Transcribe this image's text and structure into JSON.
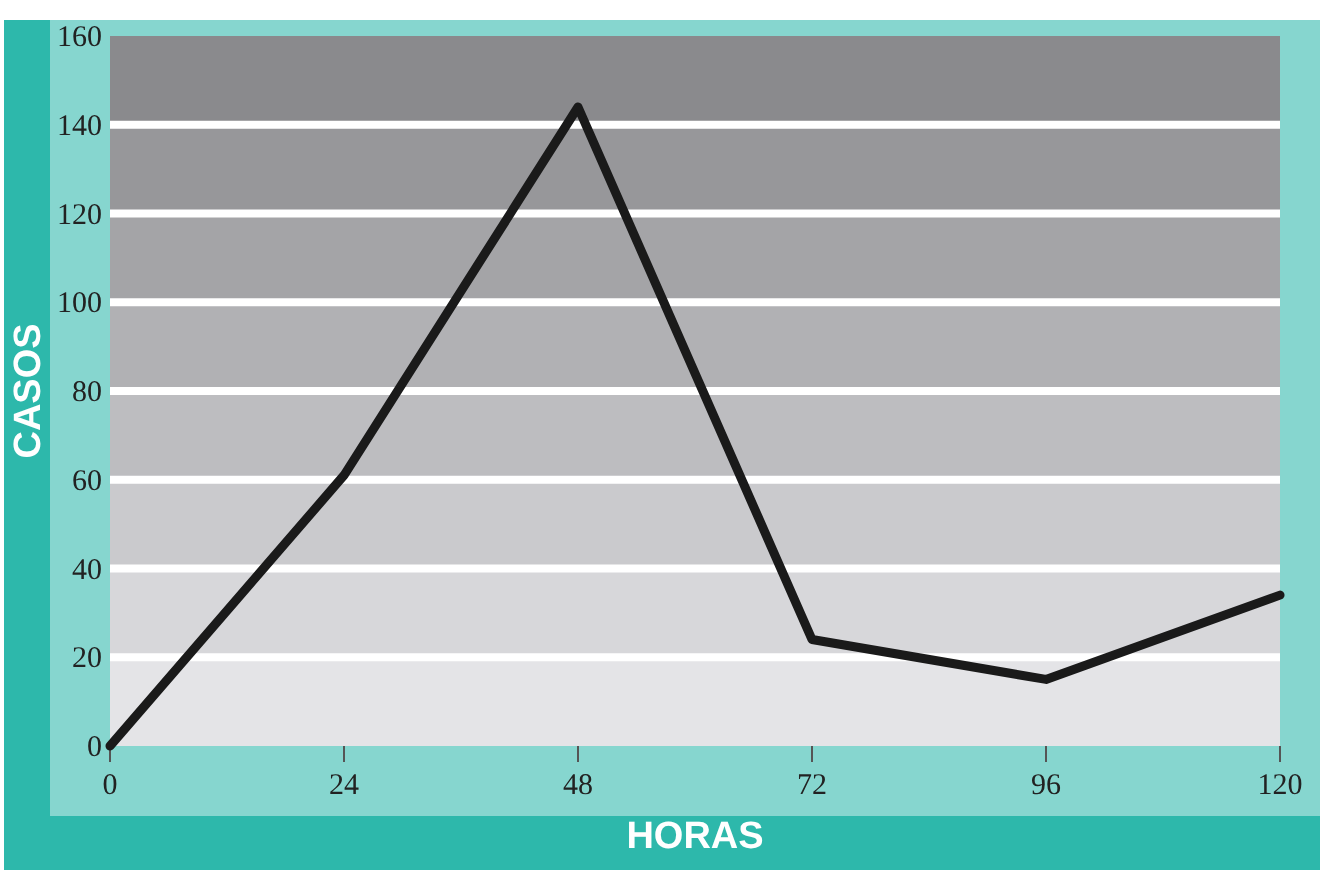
{
  "chart_data": {
    "type": "line",
    "xlabel": "HORAS",
    "ylabel": "CASOS",
    "x": [
      0,
      24,
      48,
      72,
      96,
      120
    ],
    "series": [
      {
        "color": "#1a1a1a",
        "values": [
          0,
          61,
          144,
          24,
          15,
          34
        ]
      }
    ],
    "xlim": [
      0,
      120
    ],
    "xticks": [
      0,
      24,
      48,
      72,
      96,
      120
    ],
    "ylim": [
      0,
      160
    ],
    "yticks": [
      0,
      20,
      40,
      60,
      80,
      100,
      120,
      140,
      160
    ],
    "grid": "y",
    "marker": "none",
    "line_style": "solid"
  }
}
